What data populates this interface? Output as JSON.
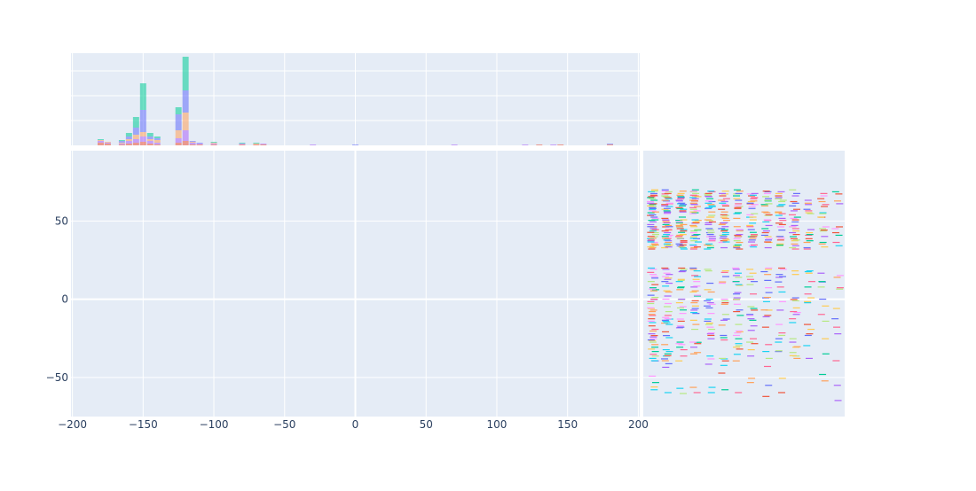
{
  "chart_data": {
    "type": "scatter",
    "title": "",
    "xlabel": "",
    "ylabel": "",
    "xlim": [
      -201,
      201
    ],
    "ylim": [
      -75,
      95
    ],
    "x_ticks": [
      -200,
      -150,
      -100,
      -50,
      0,
      50,
      100,
      150,
      200
    ],
    "x_tick_labels": [
      "−200",
      "−150",
      "−100",
      "−50",
      "0",
      "50",
      "100",
      "150",
      "200"
    ],
    "y_ticks": [
      -50,
      0,
      50
    ],
    "y_tick_labels": [
      "−50",
      "0",
      "50"
    ],
    "grid": true,
    "legend": "none",
    "main_points": [],
    "marginal_x": {
      "type": "histogram",
      "bins": [
        {
          "x": -180,
          "counts": [
            3,
            2,
            1,
            0,
            1
          ]
        },
        {
          "x": -175,
          "counts": [
            2,
            1,
            1,
            0,
            0
          ]
        },
        {
          "x": -165,
          "counts": [
            1,
            1,
            1,
            2,
            1
          ]
        },
        {
          "x": -160,
          "counts": [
            2,
            3,
            2,
            3,
            4
          ]
        },
        {
          "x": -155,
          "counts": [
            3,
            4,
            5,
            8,
            12
          ]
        },
        {
          "x": -150,
          "counts": [
            4,
            6,
            5,
            25,
            30
          ]
        },
        {
          "x": -145,
          "counts": [
            2,
            3,
            2,
            3,
            4
          ]
        },
        {
          "x": -140,
          "counts": [
            1,
            2,
            3,
            2,
            2
          ]
        },
        {
          "x": -125,
          "counts": [
            3,
            5,
            9,
            18,
            8
          ]
        },
        {
          "x": -120,
          "counts": [
            5,
            12,
            20,
            25,
            38
          ]
        },
        {
          "x": -115,
          "counts": [
            1,
            2,
            1,
            1,
            0
          ]
        },
        {
          "x": -110,
          "counts": [
            1,
            1,
            0,
            1,
            0
          ]
        },
        {
          "x": -100,
          "counts": [
            1,
            1,
            1,
            0,
            1
          ]
        },
        {
          "x": -80,
          "counts": [
            1,
            1,
            0,
            0,
            1
          ]
        },
        {
          "x": -70,
          "counts": [
            1,
            0,
            1,
            0,
            1
          ]
        },
        {
          "x": -65,
          "counts": [
            1,
            1,
            0,
            0,
            0
          ]
        },
        {
          "x": -30,
          "counts": [
            0,
            1,
            0,
            0,
            0
          ]
        },
        {
          "x": 0,
          "counts": [
            0,
            0,
            0,
            1,
            0
          ]
        },
        {
          "x": 70,
          "counts": [
            0,
            1,
            0,
            0,
            0
          ]
        },
        {
          "x": 120,
          "counts": [
            0,
            1,
            0,
            0,
            0
          ]
        },
        {
          "x": 130,
          "counts": [
            1,
            0,
            0,
            0,
            0
          ]
        },
        {
          "x": 140,
          "counts": [
            0,
            1,
            0,
            0,
            0
          ]
        },
        {
          "x": 145,
          "counts": [
            1,
            0,
            0,
            0,
            0
          ]
        },
        {
          "x": 180,
          "counts": [
            1,
            0,
            0,
            1,
            0
          ]
        }
      ],
      "series_colors": [
        "#EF553B",
        "#AB63FA",
        "#FFA15A",
        "#636EFA",
        "#00CC96"
      ]
    },
    "marginal_y": {
      "type": "rug",
      "bands": [
        {
          "y_min": 55,
          "y_max": 70,
          "density": 0.9
        },
        {
          "y_min": 50,
          "y_max": 55,
          "density": 0.6
        },
        {
          "y_min": 42,
          "y_max": 50,
          "density": 0.8
        },
        {
          "y_min": 32,
          "y_max": 42,
          "density": 0.95
        },
        {
          "y_min": 18,
          "y_max": 20,
          "density": 0.9
        },
        {
          "y_min": -40,
          "y_max": 18,
          "density": 0.35
        },
        {
          "y_min": -65,
          "y_max": -40,
          "density": 0.1
        }
      ],
      "colors": [
        "#636EFA",
        "#EF553B",
        "#00CC96",
        "#AB63FA",
        "#FFA15A",
        "#19D3F3",
        "#FF6692",
        "#B6E880",
        "#FF97FF",
        "#FECB52"
      ]
    }
  }
}
